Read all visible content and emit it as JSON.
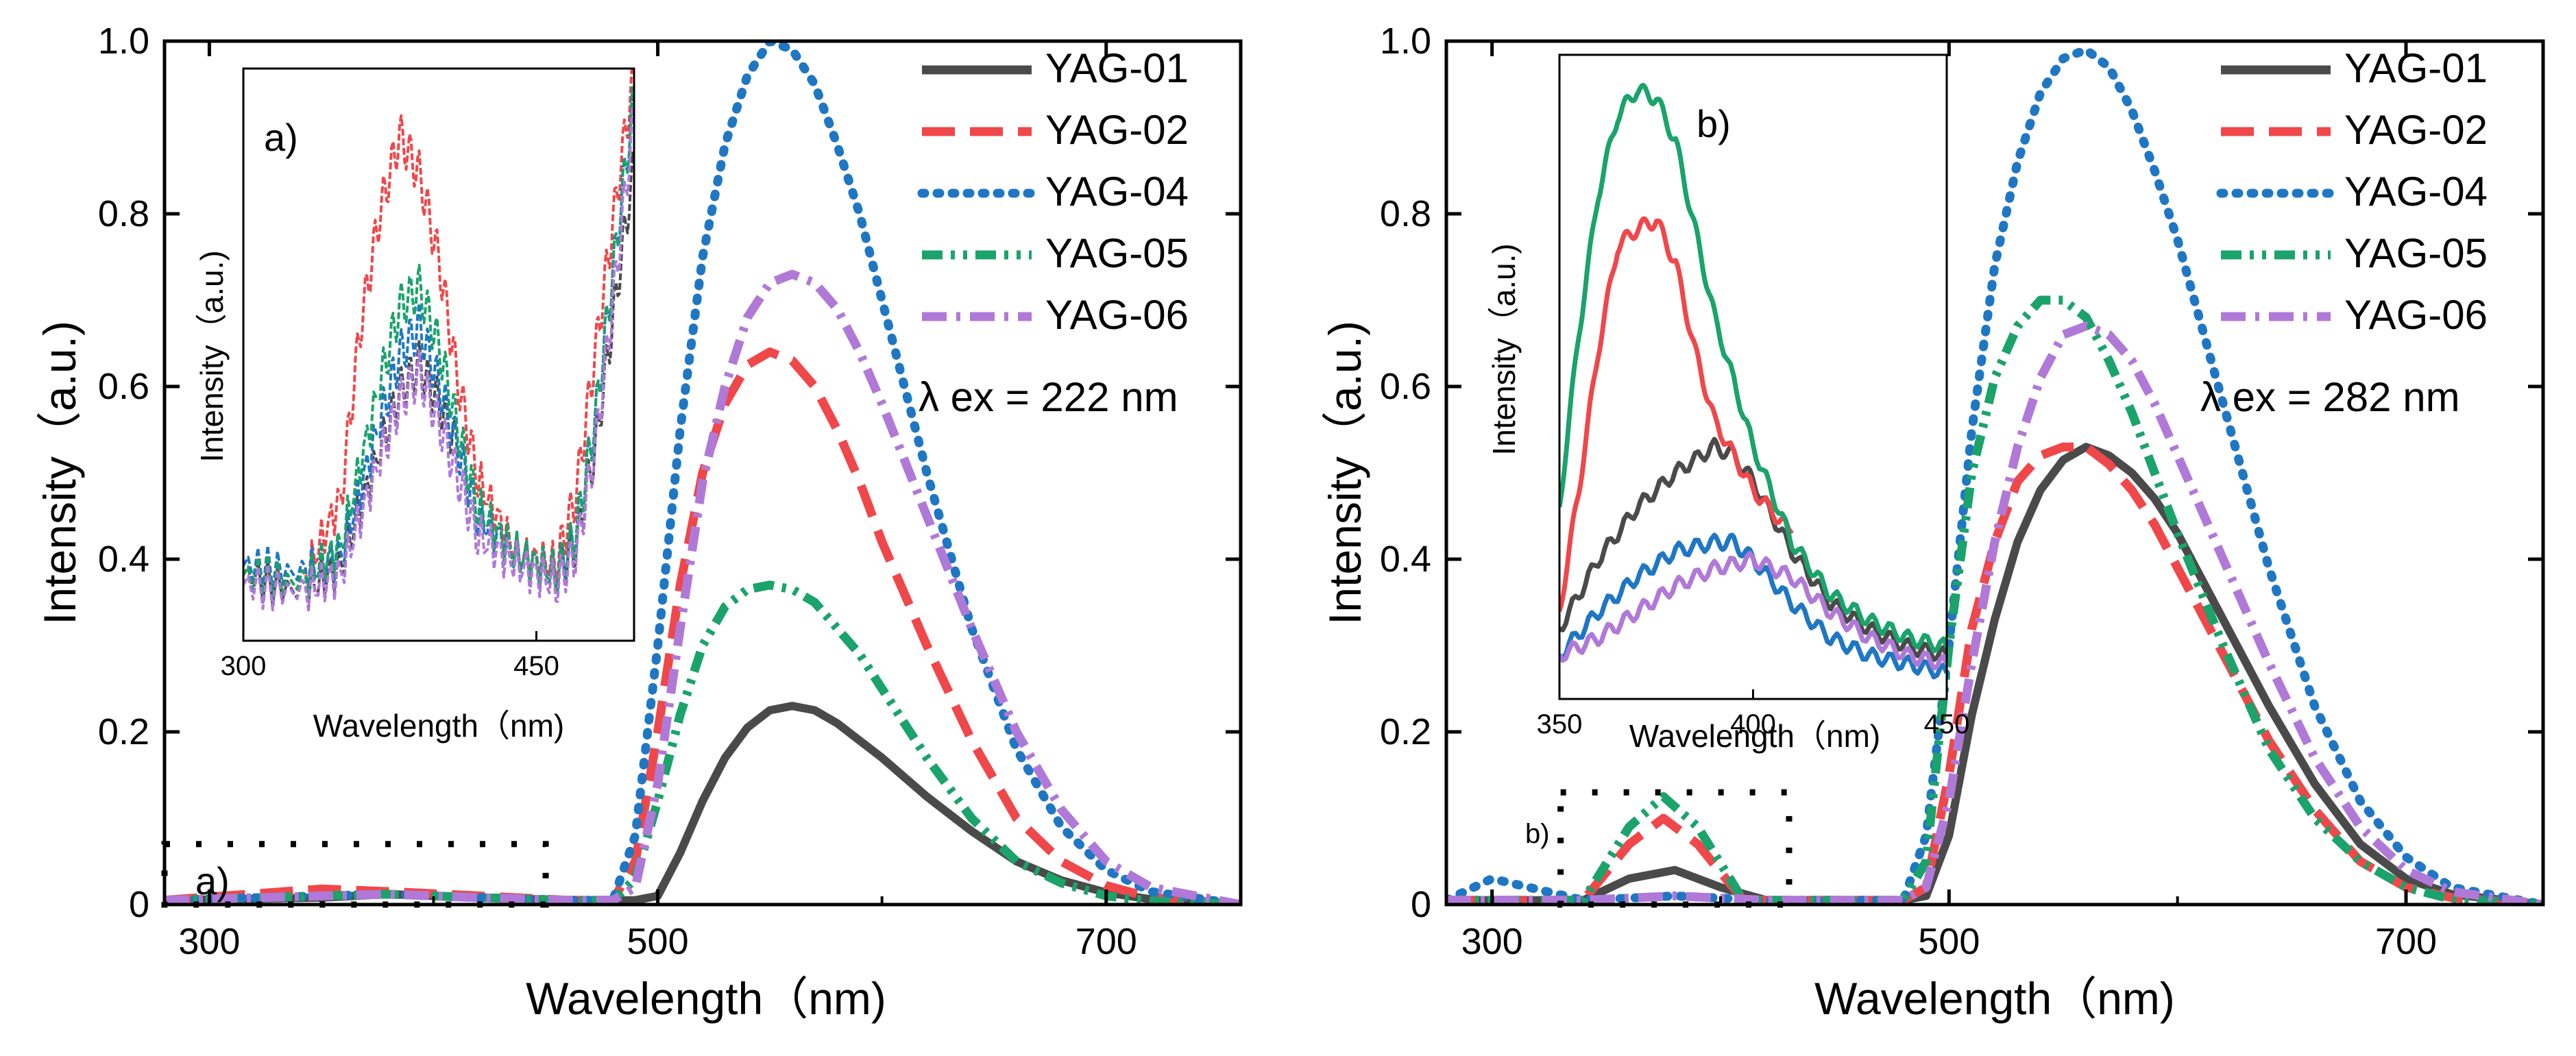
{
  "chart_data": [
    {
      "id": "left",
      "type": "line",
      "xlabel": "Wavelength（nm)",
      "ylabel": "Intensity（a.u.)",
      "xlim": [
        280,
        760
      ],
      "ylim": [
        0,
        1.0
      ],
      "x_ticks": [
        300,
        500,
        700
      ],
      "y_ticks": [
        0,
        0.2,
        0.4,
        0.6,
        0.8,
        1.0
      ],
      "y_tick_labels": [
        "0",
        "0.2",
        "0.4",
        "0.6",
        "0.8",
        "1.0"
      ],
      "annotation": "λ ex = 222 nm",
      "zoom_label": "a)",
      "zoom_box": {
        "x": [
          280,
          450
        ],
        "y": [
          0,
          0.07
        ]
      },
      "legend": {
        "position": "top-right"
      },
      "series": [
        {
          "name": "YAG-01",
          "color": "#4a4a4a",
          "style": "solid",
          "x": [
            280,
            350,
            380,
            420,
            460,
            490,
            500,
            510,
            520,
            530,
            540,
            550,
            560,
            570,
            580,
            590,
            600,
            620,
            640,
            660,
            680,
            700,
            720,
            760
          ],
          "y": [
            0.005,
            0.008,
            0.012,
            0.008,
            0.005,
            0.005,
            0.01,
            0.06,
            0.12,
            0.17,
            0.205,
            0.225,
            0.23,
            0.225,
            0.21,
            0.19,
            0.17,
            0.125,
            0.085,
            0.05,
            0.028,
            0.014,
            0.006,
            0.0
          ]
        },
        {
          "name": "YAG-02",
          "color": "#f0474a",
          "style": "dashed",
          "x": [
            280,
            350,
            380,
            420,
            460,
            480,
            490,
            500,
            510,
            520,
            530,
            540,
            550,
            560,
            570,
            580,
            590,
            600,
            620,
            640,
            660,
            680,
            700,
            720,
            760
          ],
          "y": [
            0.005,
            0.018,
            0.015,
            0.01,
            0.005,
            0.005,
            0.05,
            0.2,
            0.37,
            0.5,
            0.58,
            0.625,
            0.64,
            0.63,
            0.6,
            0.55,
            0.49,
            0.42,
            0.3,
            0.19,
            0.1,
            0.05,
            0.022,
            0.008,
            0.0
          ]
        },
        {
          "name": "YAG-04",
          "color": "#1f77c4",
          "style": "dotted",
          "x": [
            280,
            350,
            380,
            420,
            460,
            480,
            490,
            500,
            510,
            520,
            530,
            540,
            550,
            560,
            570,
            580,
            590,
            600,
            620,
            640,
            660,
            680,
            700,
            720,
            760
          ],
          "y": [
            0.005,
            0.01,
            0.012,
            0.008,
            0.005,
            0.005,
            0.08,
            0.3,
            0.55,
            0.75,
            0.88,
            0.96,
            1.0,
            0.99,
            0.95,
            0.88,
            0.8,
            0.7,
            0.5,
            0.32,
            0.18,
            0.09,
            0.04,
            0.015,
            0.0
          ]
        },
        {
          "name": "YAG-05",
          "color": "#1aa36a",
          "style": "dash-dot-dot",
          "x": [
            280,
            350,
            380,
            420,
            460,
            480,
            490,
            500,
            510,
            520,
            530,
            540,
            550,
            560,
            570,
            580,
            590,
            600,
            620,
            640,
            660,
            680,
            700,
            720,
            760
          ],
          "y": [
            0.005,
            0.01,
            0.012,
            0.008,
            0.005,
            0.005,
            0.03,
            0.12,
            0.22,
            0.3,
            0.345,
            0.365,
            0.37,
            0.365,
            0.35,
            0.32,
            0.29,
            0.25,
            0.17,
            0.1,
            0.05,
            0.025,
            0.01,
            0.004,
            0.0
          ]
        },
        {
          "name": "YAG-06",
          "color": "#b079d8",
          "style": "dash-dot",
          "x": [
            280,
            350,
            380,
            420,
            460,
            480,
            490,
            500,
            510,
            520,
            530,
            540,
            550,
            560,
            570,
            580,
            590,
            600,
            620,
            640,
            660,
            680,
            700,
            720,
            760
          ],
          "y": [
            0.005,
            0.01,
            0.012,
            0.008,
            0.005,
            0.005,
            0.02,
            0.14,
            0.32,
            0.49,
            0.6,
            0.68,
            0.72,
            0.73,
            0.72,
            0.69,
            0.64,
            0.58,
            0.45,
            0.32,
            0.2,
            0.11,
            0.05,
            0.02,
            0.0
          ]
        }
      ],
      "inset": {
        "label": "a)",
        "xlabel": "Wavelength（nm)",
        "ylabel": "Intensity（a.u.)",
        "xlim": [
          300,
          500
        ],
        "ylim": [
          0.35,
          0.95
        ],
        "x_ticks": [
          300,
          450
        ],
        "series": [
          {
            "name": "YAG-01",
            "color": "#4a4a4a",
            "x": [
              300,
              330,
              350,
              370,
              380,
              390,
              400,
              410,
              420,
              440,
              460,
              470,
              480,
              490,
              500
            ],
            "y": [
              0.42,
              0.4,
              0.43,
              0.55,
              0.61,
              0.64,
              0.6,
              0.55,
              0.48,
              0.44,
              0.42,
              0.45,
              0.55,
              0.7,
              0.85
            ]
          },
          {
            "name": "YAG-02",
            "color": "#f0474a",
            "x": [
              300,
              330,
              350,
              360,
              370,
              380,
              390,
              400,
              410,
              420,
              440,
              460,
              470,
              480,
              490,
              500
            ],
            "y": [
              0.42,
              0.41,
              0.5,
              0.68,
              0.8,
              0.88,
              0.84,
              0.75,
              0.62,
              0.52,
              0.44,
              0.43,
              0.5,
              0.65,
              0.8,
              0.95
            ]
          },
          {
            "name": "YAG-04",
            "color": "#1f77c4",
            "x": [
              300,
              330,
              350,
              370,
              380,
              390,
              400,
              410,
              420,
              440,
              460,
              470,
              480,
              490,
              500
            ],
            "y": [
              0.43,
              0.42,
              0.44,
              0.58,
              0.65,
              0.68,
              0.62,
              0.55,
              0.48,
              0.44,
              0.42,
              0.46,
              0.58,
              0.75,
              0.92
            ]
          },
          {
            "name": "YAG-05",
            "color": "#1aa36a",
            "x": [
              300,
              330,
              350,
              370,
              380,
              390,
              400,
              410,
              420,
              440,
              460,
              470,
              480,
              490,
              500
            ],
            "y": [
              0.42,
              0.41,
              0.45,
              0.62,
              0.7,
              0.72,
              0.66,
              0.57,
              0.49,
              0.44,
              0.42,
              0.46,
              0.58,
              0.75,
              0.92
            ]
          },
          {
            "name": "YAG-06",
            "color": "#b079d8",
            "x": [
              300,
              330,
              350,
              370,
              380,
              390,
              400,
              410,
              420,
              440,
              460,
              470,
              480,
              490,
              500
            ],
            "y": [
              0.41,
              0.4,
              0.42,
              0.54,
              0.6,
              0.63,
              0.58,
              0.52,
              0.46,
              0.43,
              0.41,
              0.44,
              0.55,
              0.72,
              0.9
            ]
          }
        ]
      }
    },
    {
      "id": "right",
      "type": "line",
      "xlabel": "Wavelength（nm)",
      "ylabel": "Intensity（a.u.)",
      "xlim": [
        280,
        760
      ],
      "ylim": [
        0,
        1.0
      ],
      "x_ticks": [
        300,
        500,
        700
      ],
      "y_ticks": [
        0,
        0.2,
        0.4,
        0.6,
        0.8,
        1.0
      ],
      "y_tick_labels": [
        "0",
        "0.2",
        "0.4",
        "0.6",
        "0.8",
        "1.0"
      ],
      "annotation": "λ ex = 282 nm",
      "zoom_label": "b)",
      "zoom_box": {
        "x": [
          330,
          430
        ],
        "y": [
          0,
          0.13
        ]
      },
      "legend": {
        "position": "top-right"
      },
      "series": [
        {
          "name": "YAG-01",
          "color": "#4a4a4a",
          "style": "solid",
          "x": [
            280,
            340,
            360,
            380,
            400,
            420,
            480,
            490,
            500,
            510,
            520,
            530,
            540,
            550,
            560,
            570,
            580,
            590,
            600,
            620,
            640,
            660,
            680,
            700,
            720,
            760
          ],
          "y": [
            0.005,
            0.005,
            0.03,
            0.04,
            0.02,
            0.005,
            0.005,
            0.01,
            0.08,
            0.22,
            0.33,
            0.42,
            0.48,
            0.515,
            0.53,
            0.52,
            0.5,
            0.47,
            0.43,
            0.33,
            0.23,
            0.14,
            0.07,
            0.03,
            0.012,
            0.0
          ]
        },
        {
          "name": "YAG-02",
          "color": "#f0474a",
          "style": "dashed",
          "x": [
            280,
            340,
            360,
            375,
            390,
            410,
            480,
            490,
            500,
            510,
            520,
            530,
            540,
            550,
            560,
            570,
            580,
            590,
            600,
            620,
            640,
            660,
            680,
            700,
            720,
            760
          ],
          "y": [
            0.005,
            0.005,
            0.07,
            0.1,
            0.07,
            0.005,
            0.005,
            0.02,
            0.15,
            0.32,
            0.42,
            0.49,
            0.52,
            0.53,
            0.53,
            0.51,
            0.48,
            0.44,
            0.39,
            0.29,
            0.19,
            0.11,
            0.05,
            0.02,
            0.008,
            0.0
          ]
        },
        {
          "name": "YAG-04",
          "color": "#1f77c4",
          "style": "dotted",
          "x": [
            280,
            300,
            340,
            380,
            420,
            480,
            490,
            500,
            510,
            520,
            530,
            540,
            550,
            560,
            570,
            580,
            590,
            600,
            620,
            640,
            660,
            680,
            700,
            720,
            760
          ],
          "y": [
            0.005,
            0.03,
            0.005,
            0.01,
            0.005,
            0.005,
            0.08,
            0.3,
            0.55,
            0.74,
            0.86,
            0.94,
            0.98,
            0.99,
            0.97,
            0.92,
            0.85,
            0.77,
            0.58,
            0.39,
            0.23,
            0.12,
            0.055,
            0.02,
            0.0
          ]
        },
        {
          "name": "YAG-05",
          "color": "#1aa36a",
          "style": "dash-dot-dot",
          "x": [
            280,
            340,
            360,
            375,
            390,
            410,
            480,
            490,
            500,
            510,
            520,
            530,
            540,
            550,
            560,
            570,
            580,
            590,
            600,
            620,
            640,
            660,
            680,
            700,
            720,
            760
          ],
          "y": [
            0.005,
            0.005,
            0.09,
            0.125,
            0.09,
            0.005,
            0.005,
            0.05,
            0.3,
            0.5,
            0.61,
            0.67,
            0.7,
            0.7,
            0.68,
            0.63,
            0.57,
            0.5,
            0.43,
            0.3,
            0.18,
            0.1,
            0.05,
            0.02,
            0.006,
            0.0
          ]
        },
        {
          "name": "YAG-06",
          "color": "#b079d8",
          "style": "dash-dot",
          "x": [
            280,
            340,
            380,
            420,
            480,
            490,
            500,
            510,
            520,
            530,
            540,
            550,
            560,
            570,
            580,
            590,
            600,
            620,
            640,
            660,
            680,
            700,
            720,
            760
          ],
          "y": [
            0.005,
            0.005,
            0.01,
            0.005,
            0.005,
            0.02,
            0.12,
            0.28,
            0.42,
            0.53,
            0.61,
            0.66,
            0.67,
            0.66,
            0.63,
            0.58,
            0.52,
            0.4,
            0.28,
            0.17,
            0.09,
            0.04,
            0.015,
            0.0
          ]
        }
      ],
      "inset": {
        "label": "b)",
        "xlabel": "Wavelength（nm)",
        "ylabel": "Intensity（a.u.)",
        "xlim": [
          350,
          450
        ],
        "ylim": [
          0.28,
          1.02
        ],
        "x_ticks": [
          350,
          400,
          450
        ],
        "series": [
          {
            "name": "YAG-01",
            "color": "#4a4a4a",
            "x": [
              350,
              360,
              370,
              380,
              390,
              395,
              400,
              410,
              420,
              430,
              440,
              450
            ],
            "y": [
              0.36,
              0.44,
              0.5,
              0.54,
              0.57,
              0.56,
              0.53,
              0.45,
              0.39,
              0.36,
              0.34,
              0.33
            ]
          },
          {
            "name": "YAG-02",
            "color": "#f0474a",
            "x": [
              350,
              355,
              360,
              365,
              370,
              375,
              380,
              385,
              390,
              400,
              410
            ],
            "y": [
              0.38,
              0.52,
              0.68,
              0.8,
              0.82,
              0.83,
              0.78,
              0.68,
              0.6,
              0.52,
              0.47
            ]
          },
          {
            "name": "YAG-04",
            "color": "#1f77c4",
            "x": [
              350,
              360,
              370,
              380,
              390,
              395,
              400,
              410,
              420,
              430,
              440,
              450
            ],
            "y": [
              0.33,
              0.38,
              0.42,
              0.45,
              0.46,
              0.46,
              0.44,
              0.39,
              0.35,
              0.33,
              0.32,
              0.31
            ]
          },
          {
            "name": "YAG-05",
            "color": "#1aa36a",
            "x": [
              350,
              355,
              360,
              365,
              370,
              375,
              380,
              385,
              390,
              400,
              410,
              420,
              430,
              440,
              450
            ],
            "y": [
              0.5,
              0.7,
              0.86,
              0.95,
              0.98,
              0.97,
              0.92,
              0.82,
              0.72,
              0.57,
              0.46,
              0.4,
              0.37,
              0.35,
              0.34
            ]
          },
          {
            "name": "YAG-06",
            "color": "#b079d8",
            "x": [
              350,
              360,
              370,
              380,
              390,
              400,
              410,
              420,
              430,
              440,
              450
            ],
            "y": [
              0.33,
              0.35,
              0.38,
              0.41,
              0.43,
              0.44,
              0.42,
              0.38,
              0.35,
              0.33,
              0.32
            ]
          }
        ]
      }
    }
  ]
}
